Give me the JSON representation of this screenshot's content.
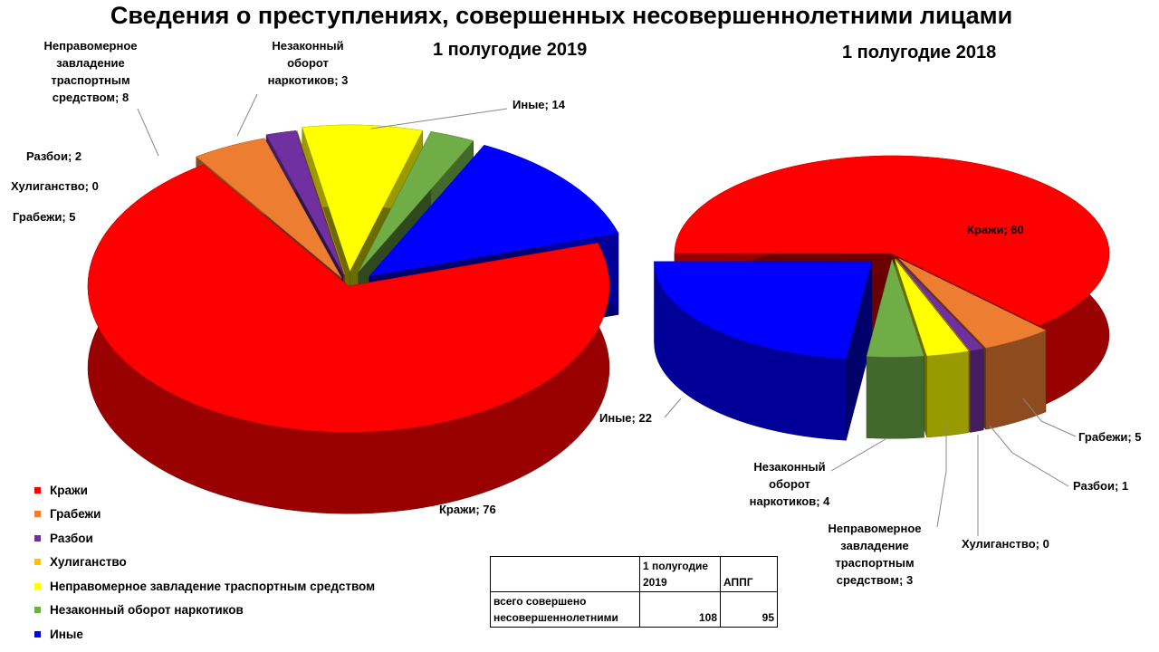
{
  "title": "Сведения о преступлениях, совершенных несовершеннолетними лицами",
  "colors": {
    "Кражи": "#ff0000",
    "Грабежи": "#ed7d31",
    "Разбои": "#7030a0",
    "Хулиганство": "#ffc000",
    "Неправомерное завладение траспортным средством": "#ffff00",
    "Незаконный оборот наркотиков": "#70ad47",
    "Иные": "#0000ff"
  },
  "legend": [
    "Кражи",
    "Грабежи",
    "Разбои",
    "Хулиганство",
    "Неправомерное завладение траспортным средством",
    "Незаконный оборот наркотиков",
    "Иные"
  ],
  "chart_data": [
    {
      "type": "pie",
      "title": "1 полугодие 2019",
      "categories": [
        "Кражи",
        "Грабежи",
        "Разбои",
        "Хулиганство",
        "Неправомерное завладение траспортным средством",
        "Незаконный оборот наркотиков",
        "Иные"
      ],
      "values": [
        76,
        5,
        2,
        0,
        8,
        3,
        14
      ],
      "labels": [
        "Кражи; 76",
        "Грабежи; 5",
        "Разбои; 2",
        "Хулиганство; 0",
        "Неправомерное завладение траспортным средством; 8",
        "Незаконный оборот наркотиков; 3",
        "Иные; 14"
      ],
      "legend": "bottom-left"
    },
    {
      "type": "pie",
      "title": "1 полугодие 2018",
      "categories": [
        "Кражи",
        "Грабежи",
        "Разбои",
        "Хулиганство",
        "Неправомерное завладение траспортным средством",
        "Незаконный оборот наркотиков",
        "Иные"
      ],
      "values": [
        60,
        5,
        1,
        0,
        3,
        4,
        22
      ],
      "labels": [
        "Кражи; 60",
        "Грабежи; 5",
        "Разбои; 1",
        "Хулиганство; 0",
        "Неправомерное завладение траспортным средством; 3",
        "Незаконный оборот наркотиков; 4",
        "Иные; 22"
      ]
    }
  ],
  "summary_table": {
    "header": [
      "",
      "1 полугодие 2019",
      "АППГ"
    ],
    "row": {
      "label": "всего совершено несовершеннолетними",
      "values": [
        108,
        95
      ]
    }
  }
}
